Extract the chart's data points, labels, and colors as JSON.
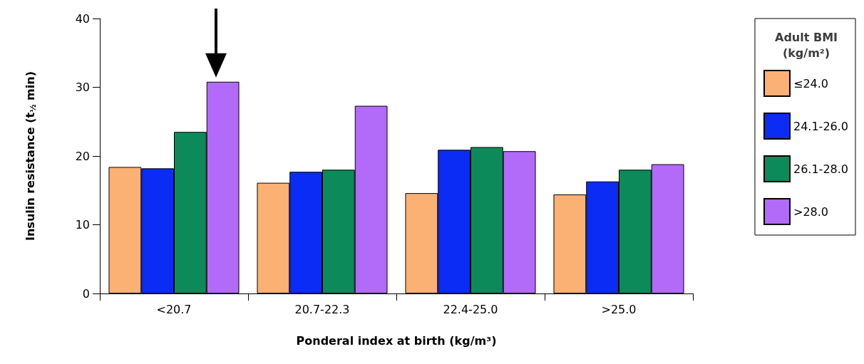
{
  "chart_data": {
    "type": "bar",
    "xlabel": "Ponderal index at birth (kg/m³)",
    "ylabel": "Insulin resistance (t$_{½}$ min)",
    "legend_title": "Adult BMI (kg/m²)",
    "categories": [
      "<20.7",
      "20.7-22.3",
      "22.4-25.0",
      ">25.0"
    ],
    "series": [
      {
        "name": "≤24.0",
        "color": "#fbb074",
        "values": [
          18.4,
          16.1,
          14.6,
          14.4
        ]
      },
      {
        "name": "24.1-26.0",
        "color": "#0a2cf5",
        "values": [
          18.2,
          17.7,
          20.9,
          16.3
        ]
      },
      {
        "name": "26.1-28.0",
        "color": "#0d8a5a",
        "values": [
          23.5,
          18.0,
          21.3,
          18.0
        ]
      },
      {
        "name": ">28.0",
        "color": "#b26af8",
        "values": [
          30.8,
          27.3,
          20.7,
          18.8
        ]
      }
    ],
    "ylim": [
      0,
      40
    ],
    "yticks": [
      0,
      10,
      20,
      30,
      40
    ],
    "grid": false,
    "legend": "right"
  }
}
